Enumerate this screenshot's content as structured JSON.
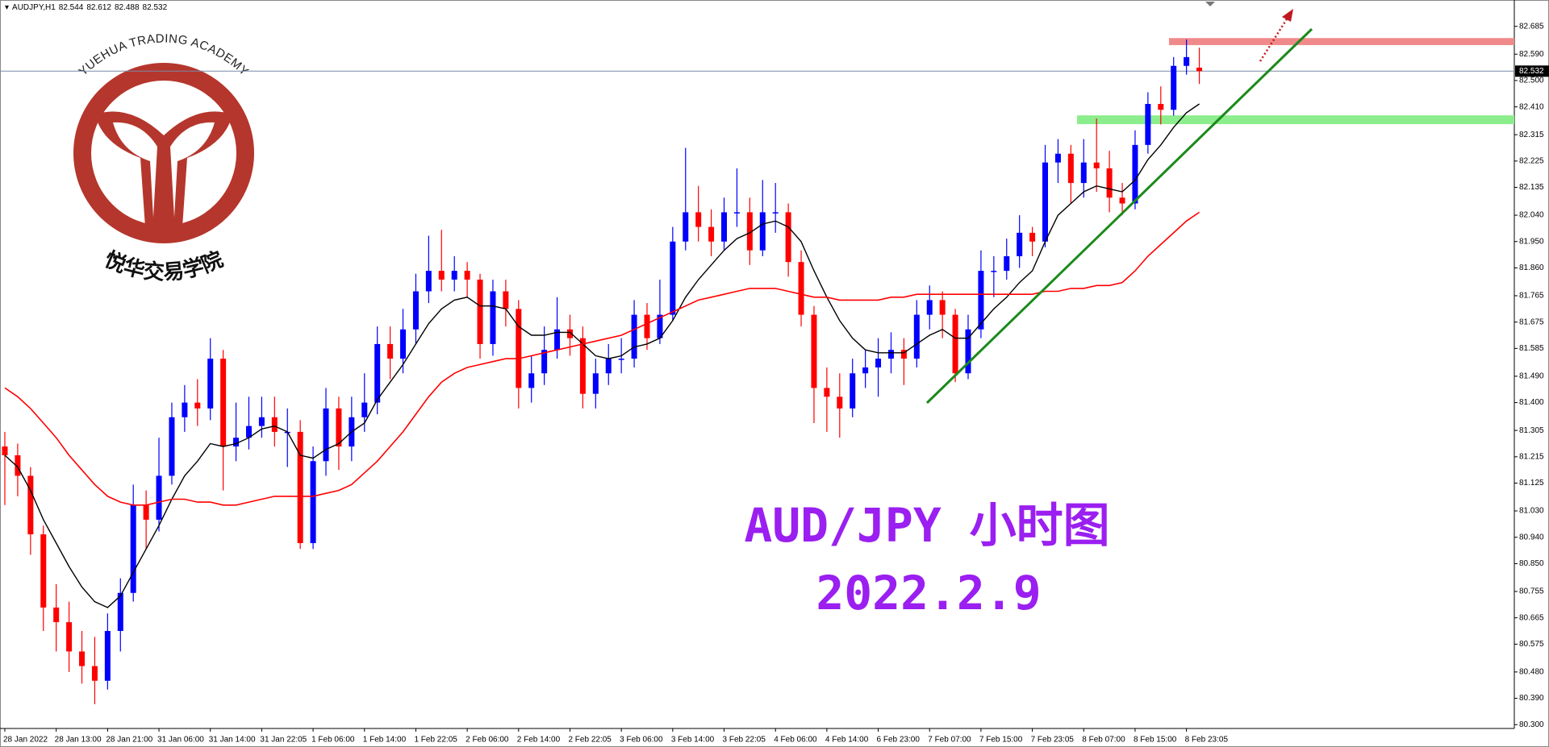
{
  "header": {
    "symbol": "AUDJPY,H1"
  },
  "chart_data": {
    "type": "candlestick",
    "categories": [
      "28 Jan 2022",
      null,
      null,
      null,
      "28 Jan 13:00",
      null,
      null,
      null,
      "28 Jan 21:00",
      null,
      null,
      null,
      "31 Jan 06:00",
      null,
      null,
      null,
      "31 Jan 14:00",
      null,
      null,
      null,
      "31 Jan 22:05",
      null,
      null,
      null,
      "1 Feb 06:00",
      null,
      null,
      null,
      "1 Feb 14:00",
      null,
      null,
      null,
      "1 Feb 22:05",
      null,
      null,
      null,
      "2 Feb 06:00",
      null,
      null,
      null,
      "2 Feb 14:00",
      null,
      null,
      null,
      "2 Feb 22:05",
      null,
      null,
      null,
      "3 Feb 06:00",
      null,
      null,
      null,
      "3 Feb 14:00",
      null,
      null,
      null,
      "3 Feb 22:05",
      null,
      null,
      null,
      "4 Feb 06:00",
      null,
      null,
      null,
      "4 Feb 14:00",
      null,
      null,
      null,
      "6 Feb 23:00",
      null,
      null,
      null,
      "7 Feb 07:00",
      null,
      null,
      null,
      "7 Feb 15:00",
      null,
      null,
      null,
      "7 Feb 23:05",
      null,
      null,
      null,
      "8 Feb 07:00",
      null,
      null,
      null,
      "8 Feb 15:00",
      null,
      null,
      null,
      "8 Feb 23:05",
      null
    ],
    "open": [
      81.25,
      81.22,
      81.15,
      80.95,
      80.7,
      80.65,
      80.55,
      80.5,
      80.45,
      80.62,
      80.75,
      81.05,
      81.0,
      81.15,
      81.35,
      81.4,
      81.38,
      81.55,
      81.25,
      81.28,
      81.32,
      81.35,
      81.3,
      81.3,
      80.92,
      81.2,
      81.38,
      81.25,
      81.35,
      81.4,
      81.6,
      81.55,
      81.65,
      81.78,
      81.85,
      81.82,
      81.85,
      81.82,
      81.6,
      81.78,
      81.72,
      81.45,
      81.5,
      81.58,
      81.65,
      81.62,
      81.43,
      81.5,
      81.55,
      81.55,
      81.7,
      81.62,
      81.7,
      81.95,
      82.05,
      82.0,
      81.95,
      82.05,
      82.05,
      81.92,
      82.05,
      82.05,
      81.88,
      81.7,
      81.45,
      81.42,
      81.38,
      81.5,
      81.52,
      81.55,
      81.58,
      81.55,
      81.7,
      81.75,
      81.7,
      81.5,
      81.65,
      81.85,
      81.85,
      81.9,
      81.98,
      81.95,
      82.22,
      82.25,
      82.15,
      82.22,
      82.2,
      82.1,
      82.08,
      82.28,
      82.42,
      82.4,
      82.55,
      82.544
    ],
    "high": [
      81.3,
      81.26,
      81.18,
      80.98,
      80.78,
      80.72,
      80.62,
      80.6,
      80.68,
      80.8,
      81.12,
      81.1,
      81.28,
      81.4,
      81.46,
      81.48,
      81.62,
      81.58,
      81.4,
      81.42,
      81.42,
      81.42,
      81.38,
      81.34,
      81.25,
      81.45,
      81.42,
      81.42,
      81.5,
      81.66,
      81.66,
      81.72,
      81.84,
      81.97,
      81.99,
      81.9,
      81.88,
      81.84,
      81.82,
      81.82,
      81.75,
      81.56,
      81.66,
      81.76,
      81.7,
      81.66,
      81.55,
      81.6,
      81.62,
      81.75,
      81.74,
      81.82,
      82.0,
      82.27,
      82.14,
      82.06,
      82.1,
      82.2,
      82.1,
      82.16,
      82.15,
      82.08,
      81.92,
      81.73,
      81.52,
      81.5,
      81.55,
      81.58,
      81.62,
      81.64,
      81.62,
      81.75,
      81.8,
      81.78,
      81.72,
      81.7,
      81.92,
      81.9,
      81.96,
      82.04,
      82.0,
      82.28,
      82.3,
      82.28,
      82.3,
      82.37,
      82.26,
      82.15,
      82.33,
      82.46,
      82.48,
      82.58,
      82.64,
      82.612
    ],
    "low": [
      81.05,
      81.08,
      80.88,
      80.62,
      80.55,
      80.48,
      80.44,
      80.37,
      80.42,
      80.55,
      80.72,
      80.9,
      80.96,
      81.12,
      81.3,
      81.32,
      81.34,
      81.1,
      81.2,
      81.24,
      81.28,
      81.25,
      81.18,
      80.9,
      80.9,
      81.15,
      81.17,
      81.2,
      81.3,
      81.36,
      81.48,
      81.5,
      81.6,
      81.74,
      81.78,
      81.78,
      81.76,
      81.55,
      81.56,
      81.66,
      81.38,
      81.4,
      81.46,
      81.55,
      81.56,
      81.38,
      81.38,
      81.46,
      81.5,
      81.52,
      81.58,
      81.6,
      81.68,
      81.92,
      81.95,
      81.9,
      81.92,
      82.0,
      81.87,
      81.9,
      81.98,
      81.83,
      81.66,
      81.33,
      81.3,
      81.28,
      81.35,
      81.45,
      81.42,
      81.5,
      81.46,
      81.52,
      81.65,
      81.62,
      81.47,
      81.48,
      81.62,
      81.76,
      81.82,
      81.86,
      81.9,
      81.93,
      82.15,
      82.08,
      82.1,
      82.12,
      82.05,
      82.04,
      82.06,
      82.25,
      82.35,
      82.38,
      82.52,
      82.488
    ],
    "close": [
      81.22,
      81.15,
      80.95,
      80.7,
      80.65,
      80.55,
      80.5,
      80.45,
      80.62,
      80.75,
      81.05,
      81.0,
      81.15,
      81.35,
      81.4,
      81.38,
      81.55,
      81.25,
      81.28,
      81.32,
      81.35,
      81.3,
      81.3,
      80.92,
      81.2,
      81.38,
      81.25,
      81.35,
      81.4,
      81.6,
      81.55,
      81.65,
      81.78,
      81.85,
      81.82,
      81.85,
      81.82,
      81.6,
      81.78,
      81.72,
      81.45,
      81.5,
      81.58,
      81.65,
      81.62,
      81.43,
      81.5,
      81.55,
      81.55,
      81.7,
      81.62,
      81.7,
      81.95,
      82.05,
      82.0,
      81.95,
      82.05,
      82.05,
      81.92,
      82.05,
      82.05,
      81.88,
      81.7,
      81.45,
      81.42,
      81.38,
      81.5,
      81.52,
      81.55,
      81.58,
      81.55,
      81.7,
      81.75,
      81.7,
      81.5,
      81.65,
      81.85,
      81.85,
      81.9,
      81.98,
      81.95,
      82.22,
      82.25,
      82.15,
      82.22,
      82.2,
      82.1,
      82.08,
      82.28,
      82.42,
      82.4,
      82.55,
      82.58,
      82.532
    ],
    "up_color": "#0000ff",
    "down_color": "#ff0000",
    "series": [
      {
        "color": "#000000",
        "values": [
          81.22,
          81.18,
          81.1,
          81.0,
          80.92,
          80.84,
          80.77,
          80.72,
          80.7,
          80.74,
          80.82,
          80.9,
          80.98,
          81.07,
          81.15,
          81.2,
          81.26,
          81.25,
          81.26,
          81.28,
          81.31,
          81.32,
          81.3,
          81.22,
          81.21,
          81.24,
          81.26,
          81.3,
          81.33,
          81.41,
          81.47,
          81.53,
          81.6,
          81.67,
          81.72,
          81.75,
          81.76,
          81.73,
          81.73,
          81.72,
          81.66,
          81.63,
          81.63,
          81.64,
          81.64,
          81.6,
          81.56,
          81.55,
          81.56,
          81.59,
          81.6,
          81.62,
          81.68,
          81.76,
          81.82,
          81.87,
          81.92,
          81.96,
          81.98,
          82.01,
          82.02,
          82.0,
          81.95,
          81.85,
          81.76,
          81.68,
          81.62,
          81.58,
          81.57,
          81.57,
          81.57,
          81.6,
          81.63,
          81.65,
          81.62,
          81.62,
          81.67,
          81.72,
          81.76,
          81.81,
          81.85,
          81.95,
          82.04,
          82.08,
          82.12,
          82.14,
          82.13,
          82.12,
          82.16,
          82.23,
          82.28,
          82.34,
          82.39,
          82.42
        ]
      },
      {
        "color": "#ff0000",
        "values": [
          81.45,
          81.42,
          81.38,
          81.33,
          81.28,
          81.22,
          81.17,
          81.12,
          81.08,
          81.06,
          81.05,
          81.05,
          81.06,
          81.07,
          81.07,
          81.06,
          81.06,
          81.05,
          81.05,
          81.06,
          81.07,
          81.08,
          81.08,
          81.08,
          81.08,
          81.09,
          81.1,
          81.12,
          81.16,
          81.2,
          81.25,
          81.3,
          81.36,
          81.42,
          81.47,
          81.5,
          81.52,
          81.53,
          81.54,
          81.55,
          81.55,
          81.56,
          81.57,
          81.58,
          81.59,
          81.6,
          81.61,
          81.62,
          81.63,
          81.65,
          81.67,
          81.69,
          81.71,
          81.73,
          81.75,
          81.76,
          81.77,
          81.78,
          81.79,
          81.79,
          81.79,
          81.78,
          81.77,
          81.76,
          81.76,
          81.75,
          81.75,
          81.75,
          81.75,
          81.76,
          81.76,
          81.77,
          81.77,
          81.77,
          81.77,
          81.77,
          81.77,
          81.77,
          81.77,
          81.77,
          81.77,
          81.78,
          81.78,
          81.79,
          81.79,
          81.8,
          81.8,
          81.81,
          81.85,
          81.9,
          81.94,
          81.98,
          82.02,
          82.05
        ]
      }
    ],
    "zones": [
      {
        "low": 82.621,
        "high": 82.645,
        "color": "#f08a8a"
      },
      {
        "low": 82.351,
        "high": 82.381,
        "color": "#8ced8c"
      }
    ],
    "ylim": [
      80.287,
      82.775
    ],
    "yticks": [
      82.685,
      {
        "value": 82.59,
        "label": "82.590"
      },
      {
        "value": 82.5,
        "label": "82.500"
      },
      {
        "value": 82.41,
        "label": "82.410"
      },
      82.315,
      82.225,
      82.135,
      {
        "value": 82.04,
        "label": "82.040"
      },
      {
        "value": 81.95,
        "label": "81.950"
      },
      {
        "value": 81.86,
        "label": "81.860"
      },
      81.765,
      81.675,
      81.585,
      {
        "value": 81.49,
        "label": "81.490"
      },
      {
        "value": 81.4,
        "label": "81.400"
      },
      81.305,
      81.215,
      81.125,
      {
        "value": 81.03,
        "label": "81.030"
      },
      {
        "value": 80.94,
        "label": "80.940"
      },
      {
        "value": 80.85,
        "label": "80.850"
      },
      80.755,
      80.665,
      80.575,
      {
        "value": 80.48,
        "label": "80.480"
      },
      {
        "value": 80.39,
        "label": "80.390"
      },
      {
        "value": 80.3,
        "label": "80.300"
      }
    ]
  },
  "watermark": {
    "line1": "AUD/JPY 小时图",
    "line2": "2022.2.9"
  },
  "logo": {
    "english": "YUEHUA TRADING ACADEMY",
    "chinese": "悦华交易学院"
  }
}
